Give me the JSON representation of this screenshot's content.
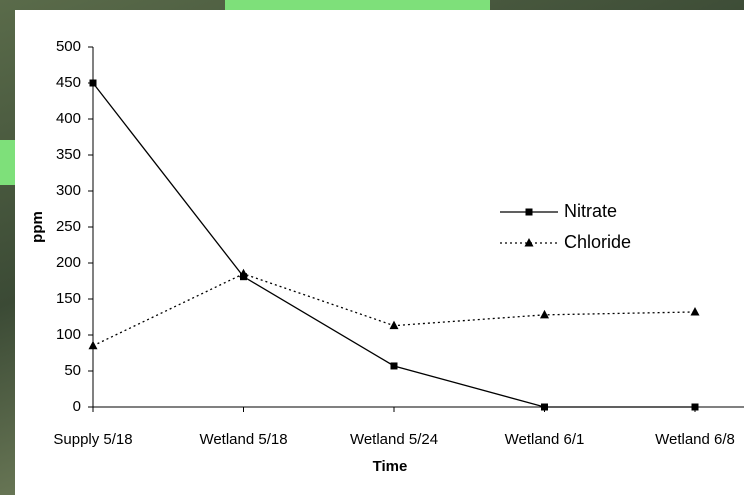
{
  "chart_data": {
    "type": "line",
    "categories": [
      "Supply 5/18",
      "Wetland 5/18",
      "Wetland 5/24",
      "Wetland 6/1",
      "Wetland 6/8"
    ],
    "series": [
      {
        "name": "Nitrate",
        "color": "#000000",
        "dash": false,
        "marker": "square",
        "values": [
          450,
          181,
          57,
          0,
          0
        ]
      },
      {
        "name": "Chloride",
        "color": "#000000",
        "dash": true,
        "marker": "triangle",
        "values": [
          85,
          185,
          113,
          128,
          132
        ]
      }
    ],
    "ylabel": "ppm",
    "xlabel": "Time",
    "ylim": [
      0,
      500
    ],
    "yticks": [
      0,
      50,
      100,
      150,
      200,
      250,
      300,
      350,
      400,
      450,
      500
    ],
    "grid": false,
    "legend": "right"
  }
}
